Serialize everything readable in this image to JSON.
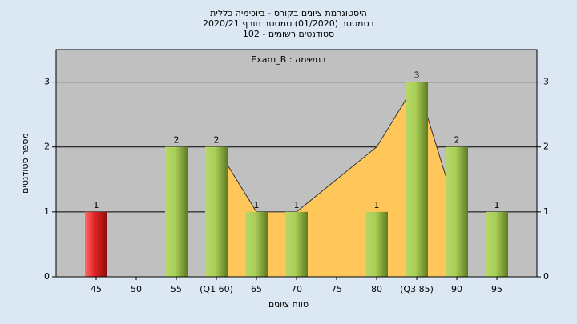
{
  "chart_data": {
    "type": "bar",
    "title": [
      "היסטוגרמת ציונים בקורס - ביוכימיה כללית",
      "בסמסטר  (01/2020)  סמסטר חורף 2020/21",
      "סטודנטים רשומים - 102"
    ],
    "legend_text": "במשימה : Exam_B",
    "x_label": "טווח ציונים",
    "y_label": "מספר סטודנטים",
    "categories": [
      "45",
      "50",
      "55",
      "(Q1 60)",
      "65",
      "70",
      "75",
      "80",
      "(Q3 85)",
      "90",
      "95"
    ],
    "series": [
      {
        "values": [
          1,
          0,
          2,
          2,
          1,
          1,
          0,
          1,
          3,
          2,
          1
        ],
        "colors": [
          "#e02020",
          "#8db83a",
          "#8db83a",
          "#8db83a",
          "#8db83a",
          "#8db83a",
          "#8db83a",
          "#8db83a",
          "#8db83a",
          "#8db83a",
          "#8db83a"
        ]
      },
      {
        "type": "area",
        "color": "#ffc75a",
        "values": [
          null,
          null,
          null,
          2,
          1,
          1,
          1.5,
          2,
          3,
          1,
          null
        ]
      }
    ],
    "ylim": [
      0,
      3.5
    ],
    "yticks": [
      0,
      1,
      2,
      3
    ],
    "y2lim": [
      0,
      3.5
    ],
    "y2ticks": [
      0,
      1,
      2,
      3
    ],
    "grid": true
  }
}
